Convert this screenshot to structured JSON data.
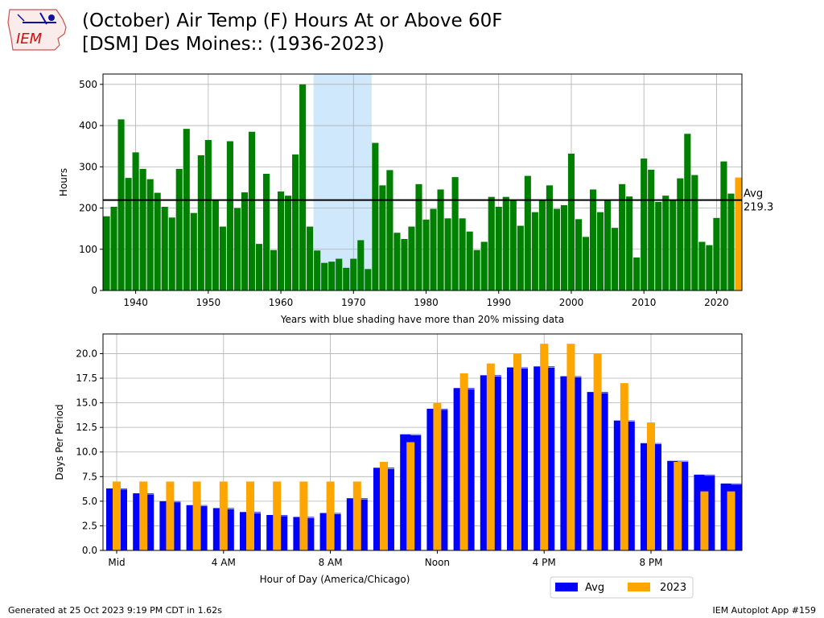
{
  "title": {
    "line1": "(October) Air Temp (F) Hours At or Above 60F",
    "line2": "[DSM] Des Moines:: (1936-2023)"
  },
  "logo_text": "IEM",
  "footer": {
    "left": "Generated at 25 Oct 2023 9:19 PM CDT in 1.62s",
    "right": "IEM Autoplot App #159"
  },
  "colors": {
    "year_bar": "#008000",
    "current_year_bar": "#ffa500",
    "avg_bar": "#0000ff",
    "shade": "#cfe8fc"
  },
  "chart_data": [
    {
      "type": "bar",
      "ylabel": "Hours",
      "xlabel": "Years with blue shading have more than 20% missing data",
      "ylim": [
        0,
        525
      ],
      "xlim": [
        1935.5,
        2023.5
      ],
      "yticks": [
        0,
        100,
        200,
        300,
        400,
        500
      ],
      "xticks": [
        1940,
        1950,
        1960,
        1970,
        1980,
        1990,
        2000,
        2010,
        2020
      ],
      "grid": true,
      "shaded_range": [
        1964.5,
        1972.5
      ],
      "average": {
        "value": 219.3,
        "label": "Avg",
        "value_label": "219.3"
      },
      "highlight_year": 2023,
      "years": [
        1936,
        1937,
        1938,
        1939,
        1940,
        1941,
        1942,
        1943,
        1944,
        1945,
        1946,
        1947,
        1948,
        1949,
        1950,
        1951,
        1952,
        1953,
        1954,
        1955,
        1956,
        1957,
        1958,
        1959,
        1960,
        1961,
        1962,
        1963,
        1964,
        1965,
        1966,
        1967,
        1968,
        1969,
        1970,
        1971,
        1972,
        1973,
        1974,
        1975,
        1976,
        1977,
        1978,
        1979,
        1980,
        1981,
        1982,
        1983,
        1984,
        1985,
        1986,
        1987,
        1988,
        1989,
        1990,
        1991,
        1992,
        1993,
        1994,
        1995,
        1996,
        1997,
        1998,
        1999,
        2000,
        2001,
        2002,
        2003,
        2004,
        2005,
        2006,
        2007,
        2008,
        2009,
        2010,
        2011,
        2012,
        2013,
        2014,
        2015,
        2016,
        2017,
        2018,
        2019,
        2020,
        2021,
        2022,
        2023
      ],
      "values": [
        180,
        203,
        415,
        273,
        335,
        295,
        270,
        237,
        203,
        177,
        295,
        392,
        188,
        328,
        365,
        218,
        155,
        362,
        200,
        238,
        385,
        113,
        283,
        98,
        240,
        230,
        330,
        500,
        155,
        97,
        67,
        70,
        77,
        55,
        77,
        122,
        52,
        358,
        255,
        292,
        140,
        125,
        155,
        258,
        172,
        198,
        245,
        175,
        275,
        175,
        143,
        98,
        118,
        227,
        203,
        227,
        220,
        157,
        278,
        190,
        220,
        255,
        198,
        207,
        332,
        173,
        130,
        245,
        190,
        220,
        152,
        258,
        228,
        80,
        320,
        293,
        215,
        230,
        220,
        272,
        380,
        280,
        118,
        110,
        176,
        313,
        235,
        274
      ]
    },
    {
      "type": "bar",
      "ylabel": "Days Per Period",
      "xlabel": "Hour of Day (America/Chicago)",
      "ylim": [
        0,
        22
      ],
      "yticks": [
        0.0,
        2.5,
        5.0,
        7.5,
        10.0,
        12.5,
        15.0,
        17.5,
        20.0
      ],
      "ytick_labels": [
        "0.0",
        "2.5",
        "5.0",
        "7.5",
        "10.0",
        "12.5",
        "15.0",
        "17.5",
        "20.0"
      ],
      "xticks": [
        0,
        4,
        8,
        12,
        16,
        20
      ],
      "xtick_labels": [
        "Mid",
        "4 AM",
        "8 AM",
        "Noon",
        "4 PM",
        "8 PM"
      ],
      "grid": true,
      "legend_placement": "bottom-right",
      "hours": [
        0,
        1,
        2,
        3,
        4,
        5,
        6,
        7,
        8,
        9,
        10,
        11,
        12,
        13,
        14,
        15,
        16,
        17,
        18,
        19,
        20,
        21,
        22,
        23
      ],
      "series": [
        {
          "name": "Avg",
          "values": [
            6.3,
            5.8,
            5.0,
            4.6,
            4.3,
            3.9,
            3.6,
            3.4,
            3.8,
            5.3,
            8.4,
            11.8,
            14.4,
            16.5,
            17.8,
            18.6,
            18.7,
            17.7,
            16.1,
            13.2,
            10.9,
            9.1,
            7.7,
            6.8
          ]
        },
        {
          "name": "2023",
          "values": [
            7,
            7,
            7,
            7,
            7,
            7,
            7,
            7,
            7,
            7,
            9,
            11,
            15,
            18,
            19,
            20,
            21,
            21,
            20,
            17,
            13,
            9,
            6,
            6
          ]
        }
      ]
    }
  ]
}
